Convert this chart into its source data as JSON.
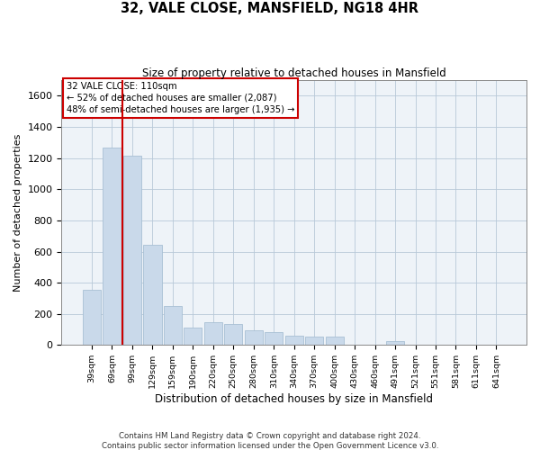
{
  "title": "32, VALE CLOSE, MANSFIELD, NG18 4HR",
  "subtitle": "Size of property relative to detached houses in Mansfield",
  "xlabel": "Distribution of detached houses by size in Mansfield",
  "ylabel": "Number of detached properties",
  "footnote1": "Contains HM Land Registry data © Crown copyright and database right 2024.",
  "footnote2": "Contains public sector information licensed under the Open Government Licence v3.0.",
  "property_label": "32 VALE CLOSE: 110sqm",
  "annotation1": "← 52% of detached houses are smaller (2,087)",
  "annotation2": "48% of semi-detached houses are larger (1,935) →",
  "bar_color": "#c9d9ea",
  "bar_edge_color": "#a8bfd4",
  "property_line_color": "#cc0000",
  "annotation_box_color": "#cc0000",
  "categories": [
    "39sqm",
    "69sqm",
    "99sqm",
    "129sqm",
    "159sqm",
    "190sqm",
    "220sqm",
    "250sqm",
    "280sqm",
    "310sqm",
    "340sqm",
    "370sqm",
    "400sqm",
    "430sqm",
    "460sqm",
    "491sqm",
    "521sqm",
    "551sqm",
    "581sqm",
    "611sqm",
    "641sqm"
  ],
  "values": [
    355,
    1265,
    1215,
    645,
    248,
    110,
    148,
    137,
    92,
    82,
    60,
    56,
    55,
    0,
    0,
    24,
    0,
    0,
    0,
    0,
    0
  ],
  "ylim": [
    0,
    1700
  ],
  "yticks": [
    0,
    200,
    400,
    600,
    800,
    1000,
    1200,
    1400,
    1600
  ],
  "property_line_x": 1.5
}
